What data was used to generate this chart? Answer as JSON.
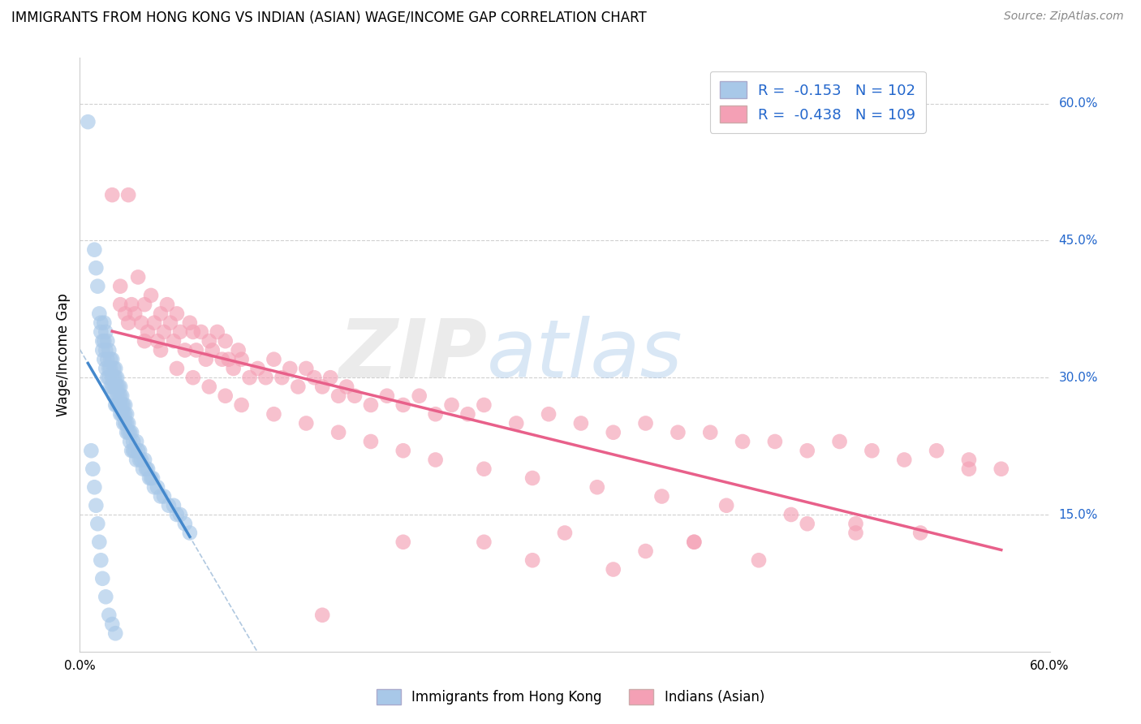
{
  "title": "IMMIGRANTS FROM HONG KONG VS INDIAN (ASIAN) WAGE/INCOME GAP CORRELATION CHART",
  "source": "Source: ZipAtlas.com",
  "ylabel": "Wage/Income Gap",
  "watermark": "ZIPatlas",
  "xlim": [
    0.0,
    0.6
  ],
  "ylim": [
    0.0,
    0.65
  ],
  "ytick_right_vals": [
    0.15,
    0.3,
    0.45,
    0.6
  ],
  "ytick_right_labels": [
    "15.0%",
    "30.0%",
    "45.0%",
    "60.0%"
  ],
  "hk_R": "-0.153",
  "hk_N": "102",
  "ind_R": "-0.438",
  "ind_N": "109",
  "hk_color": "#a8c8e8",
  "ind_color": "#f4a0b5",
  "hk_line_color": "#4488cc",
  "ind_line_color": "#e8608a",
  "dashed_line_color": "#b0c8e0",
  "background_color": "#ffffff",
  "grid_color": "#d0d0d0",
  "legend_label_hk": "Immigrants from Hong Kong",
  "legend_label_ind": "Indians (Asian)",
  "hk_scatter_x": [
    0.005,
    0.009,
    0.01,
    0.011,
    0.012,
    0.013,
    0.013,
    0.014,
    0.014,
    0.015,
    0.015,
    0.015,
    0.016,
    0.016,
    0.016,
    0.017,
    0.017,
    0.017,
    0.018,
    0.018,
    0.018,
    0.019,
    0.019,
    0.019,
    0.02,
    0.02,
    0.02,
    0.021,
    0.021,
    0.021,
    0.021,
    0.022,
    0.022,
    0.022,
    0.022,
    0.023,
    0.023,
    0.023,
    0.023,
    0.024,
    0.024,
    0.024,
    0.025,
    0.025,
    0.025,
    0.025,
    0.026,
    0.026,
    0.026,
    0.027,
    0.027,
    0.027,
    0.028,
    0.028,
    0.028,
    0.029,
    0.029,
    0.029,
    0.03,
    0.03,
    0.031,
    0.031,
    0.032,
    0.032,
    0.033,
    0.033,
    0.034,
    0.035,
    0.035,
    0.036,
    0.037,
    0.037,
    0.038,
    0.039,
    0.04,
    0.041,
    0.042,
    0.043,
    0.044,
    0.045,
    0.046,
    0.048,
    0.05,
    0.052,
    0.055,
    0.058,
    0.06,
    0.062,
    0.065,
    0.068,
    0.007,
    0.008,
    0.009,
    0.01,
    0.011,
    0.012,
    0.013,
    0.014,
    0.016,
    0.018,
    0.02,
    0.022
  ],
  "hk_scatter_y": [
    0.58,
    0.44,
    0.42,
    0.4,
    0.37,
    0.36,
    0.35,
    0.34,
    0.33,
    0.36,
    0.34,
    0.32,
    0.35,
    0.33,
    0.31,
    0.34,
    0.32,
    0.3,
    0.33,
    0.31,
    0.3,
    0.32,
    0.31,
    0.29,
    0.32,
    0.3,
    0.29,
    0.31,
    0.3,
    0.29,
    0.28,
    0.31,
    0.3,
    0.29,
    0.27,
    0.3,
    0.29,
    0.28,
    0.27,
    0.29,
    0.28,
    0.27,
    0.29,
    0.28,
    0.27,
    0.26,
    0.28,
    0.27,
    0.26,
    0.27,
    0.26,
    0.25,
    0.27,
    0.26,
    0.25,
    0.26,
    0.25,
    0.24,
    0.25,
    0.24,
    0.24,
    0.23,
    0.24,
    0.22,
    0.23,
    0.22,
    0.22,
    0.23,
    0.21,
    0.22,
    0.22,
    0.21,
    0.21,
    0.2,
    0.21,
    0.2,
    0.2,
    0.19,
    0.19,
    0.19,
    0.18,
    0.18,
    0.17,
    0.17,
    0.16,
    0.16,
    0.15,
    0.15,
    0.14,
    0.13,
    0.22,
    0.2,
    0.18,
    0.16,
    0.14,
    0.12,
    0.1,
    0.08,
    0.06,
    0.04,
    0.03,
    0.02
  ],
  "ind_scatter_x": [
    0.02,
    0.025,
    0.025,
    0.028,
    0.03,
    0.032,
    0.034,
    0.036,
    0.038,
    0.04,
    0.042,
    0.044,
    0.046,
    0.048,
    0.05,
    0.052,
    0.054,
    0.056,
    0.058,
    0.06,
    0.062,
    0.065,
    0.068,
    0.07,
    0.072,
    0.075,
    0.078,
    0.08,
    0.082,
    0.085,
    0.088,
    0.09,
    0.092,
    0.095,
    0.098,
    0.1,
    0.105,
    0.11,
    0.115,
    0.12,
    0.125,
    0.13,
    0.135,
    0.14,
    0.145,
    0.15,
    0.155,
    0.16,
    0.165,
    0.17,
    0.18,
    0.19,
    0.2,
    0.21,
    0.22,
    0.23,
    0.24,
    0.25,
    0.27,
    0.29,
    0.31,
    0.33,
    0.35,
    0.37,
    0.39,
    0.41,
    0.43,
    0.45,
    0.47,
    0.49,
    0.51,
    0.53,
    0.55,
    0.57,
    0.03,
    0.04,
    0.05,
    0.06,
    0.07,
    0.08,
    0.09,
    0.1,
    0.12,
    0.14,
    0.16,
    0.18,
    0.2,
    0.22,
    0.25,
    0.28,
    0.32,
    0.36,
    0.4,
    0.44,
    0.48,
    0.52,
    0.3,
    0.25,
    0.35,
    0.2,
    0.45,
    0.38,
    0.28,
    0.33,
    0.55,
    0.42,
    0.48,
    0.38,
    0.15
  ],
  "ind_scatter_y": [
    0.5,
    0.4,
    0.38,
    0.37,
    0.5,
    0.38,
    0.37,
    0.41,
    0.36,
    0.38,
    0.35,
    0.39,
    0.36,
    0.34,
    0.37,
    0.35,
    0.38,
    0.36,
    0.34,
    0.37,
    0.35,
    0.33,
    0.36,
    0.35,
    0.33,
    0.35,
    0.32,
    0.34,
    0.33,
    0.35,
    0.32,
    0.34,
    0.32,
    0.31,
    0.33,
    0.32,
    0.3,
    0.31,
    0.3,
    0.32,
    0.3,
    0.31,
    0.29,
    0.31,
    0.3,
    0.29,
    0.3,
    0.28,
    0.29,
    0.28,
    0.27,
    0.28,
    0.27,
    0.28,
    0.26,
    0.27,
    0.26,
    0.27,
    0.25,
    0.26,
    0.25,
    0.24,
    0.25,
    0.24,
    0.24,
    0.23,
    0.23,
    0.22,
    0.23,
    0.22,
    0.21,
    0.22,
    0.21,
    0.2,
    0.36,
    0.34,
    0.33,
    0.31,
    0.3,
    0.29,
    0.28,
    0.27,
    0.26,
    0.25,
    0.24,
    0.23,
    0.22,
    0.21,
    0.2,
    0.19,
    0.18,
    0.17,
    0.16,
    0.15,
    0.14,
    0.13,
    0.13,
    0.12,
    0.11,
    0.12,
    0.14,
    0.12,
    0.1,
    0.09,
    0.2,
    0.1,
    0.13,
    0.12,
    0.04
  ]
}
